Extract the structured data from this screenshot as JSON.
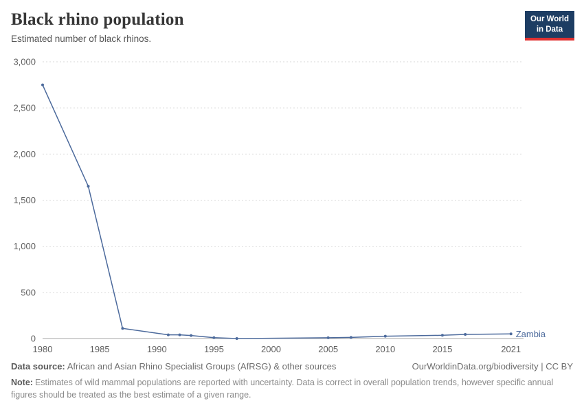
{
  "header": {
    "title": "Black rhino population",
    "subtitle": "Estimated number of black rhinos.",
    "logo": {
      "line1": "Our World",
      "line2": "in Data"
    }
  },
  "brand_colors": {
    "logo_navy": "#1d3d63",
    "logo_red": "#e03131",
    "line_blue": "#4c6a9c"
  },
  "chart_data": {
    "type": "line",
    "title": "Black rhino population",
    "subtitle": "Estimated number of black rhinos.",
    "xlabel": "",
    "ylabel": "",
    "grid": true,
    "legend_position": "end-of-line",
    "xlim": [
      1980,
      2021.5
    ],
    "ylim": [
      0,
      3000
    ],
    "x_ticks": [
      1980,
      1985,
      1990,
      1995,
      2000,
      2005,
      2010,
      2015,
      2021
    ],
    "y_ticks": [
      0,
      500,
      1000,
      1500,
      2000,
      2500,
      3000
    ],
    "y_tick_labels": [
      "0",
      "500",
      "1,000",
      "1,500",
      "2,000",
      "2,500",
      "3,000"
    ],
    "series": [
      {
        "name": "Zambia",
        "color": "#4c6a9c",
        "points": [
          [
            1980,
            2750
          ],
          [
            1984,
            1650
          ],
          [
            1987,
            110
          ],
          [
            1991,
            40
          ],
          [
            1992,
            40
          ],
          [
            1993,
            33
          ],
          [
            1995,
            10
          ],
          [
            1997,
            0
          ],
          [
            2005,
            8
          ],
          [
            2007,
            12
          ],
          [
            2010,
            25
          ],
          [
            2015,
            35
          ],
          [
            2017,
            45
          ],
          [
            2021,
            50
          ]
        ]
      }
    ]
  },
  "footer": {
    "source_label": "Data source:",
    "source_text": "African and Asian Rhino Specialist Groups (AfRSG) & other sources",
    "credit": "OurWorldinData.org/biodiversity | CC BY",
    "note_label": "Note:",
    "note_text": "Estimates of wild mammal populations are reported with uncertainty. Data is correct in overall population trends, however specific annual figures should be treated as the best estimate of a given range."
  }
}
